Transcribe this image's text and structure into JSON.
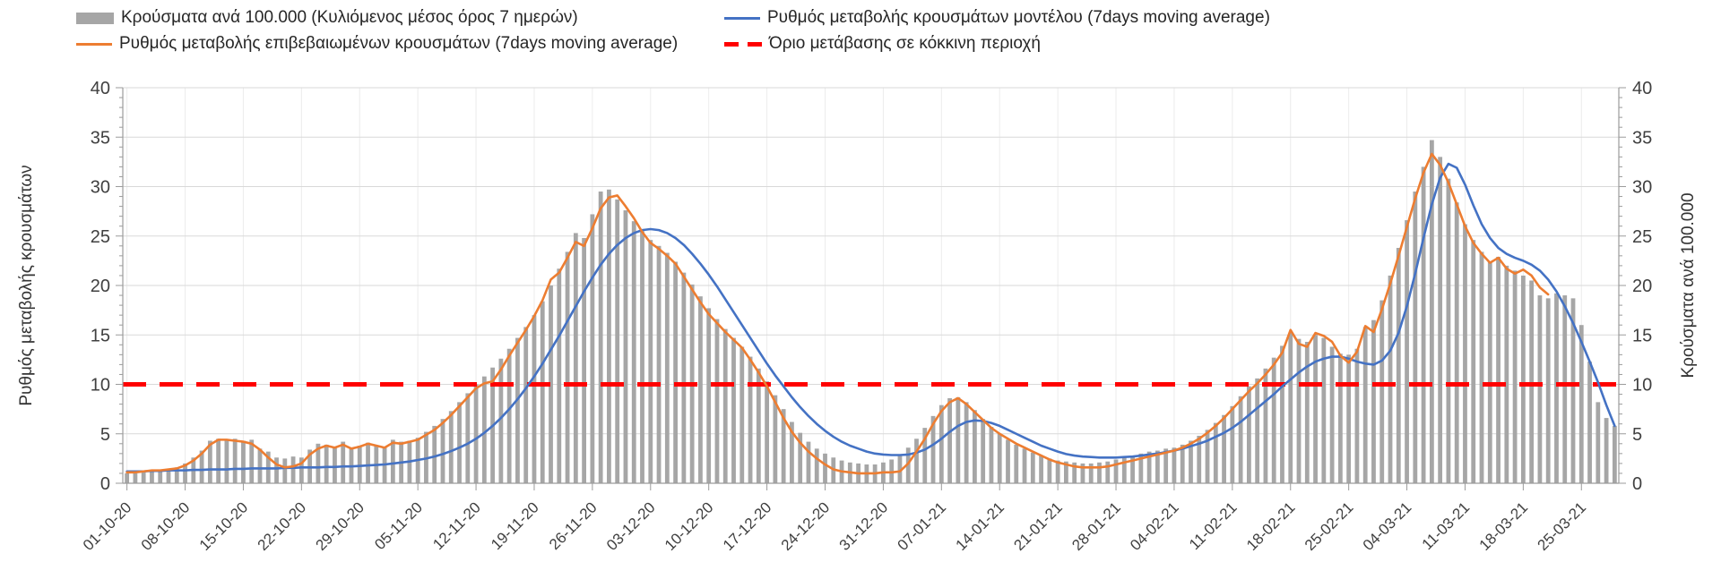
{
  "legend": {
    "items": [
      {
        "key": "bars",
        "label": "Κρούσματα ανά 100.000 (Κυλιόμενος μέσος όρος 7 ημερών)",
        "swatch": "bar"
      },
      {
        "key": "model",
        "label": "Ρυθμός μεταβολής κρουσμάτων μοντέλου (7days moving average)",
        "swatch": "line"
      },
      {
        "key": "confirmed",
        "label": "Ρυθμός μεταβολής επιβεβαιωμένων κρουσμάτων (7days moving average)",
        "swatch": "line"
      },
      {
        "key": "threshold",
        "label": "Όριο μετάβασης σε κόκκινη περιοχή",
        "swatch": "dash"
      }
    ]
  },
  "chart_data": {
    "type": "combo-bar-line",
    "title": "",
    "ylabel_left": "Ρυθμός μεταβολής κρουσμάτων",
    "ylabel_right": "Κρούσματα ανά 100.000",
    "ylim": [
      0,
      40
    ],
    "y_tick_step": 5,
    "y_minor_tick_step": 1,
    "grid": true,
    "legend_position": "top",
    "n_points": 180,
    "tick_interval_days": 7,
    "x_tick_labels": [
      "01-10-20",
      "08-10-20",
      "15-10-20",
      "22-10-20",
      "29-10-20",
      "05-11-20",
      "12-11-20",
      "19-11-20",
      "26-11-20",
      "03-12-20",
      "10-12-20",
      "17-12-20",
      "24-12-20",
      "31-12-20",
      "07-01-21",
      "14-01-21",
      "21-01-21",
      "28-01-21",
      "04-02-21",
      "11-02-21",
      "18-02-21",
      "25-02-21",
      "04-03-21",
      "11-03-21",
      "18-03-21",
      "25-03-21"
    ],
    "threshold": {
      "name": "Όριο μετάβασης σε κόκκινη περιοχή",
      "value": 10,
      "color": "#FF0000",
      "style": "dashed"
    },
    "colors": {
      "bars": "#A6A6A6",
      "confirmed": "#ED7D31",
      "model": "#4472C4",
      "threshold": "#FF0000",
      "gridline": "#D9D9D9",
      "vgridline": "#ECECEC",
      "axis": "#9B9B9B",
      "tick_text": "#404040"
    },
    "series": [
      {
        "name": "Κρούσματα ανά 100.000 (Κυλιόμενος μέσος όρος 7 ημερών)",
        "type": "bar",
        "color": "#A6A6A6",
        "values": [
          1.0,
          1.0,
          1.1,
          1.2,
          1.3,
          1.3,
          1.6,
          2.0,
          2.6,
          3.3,
          4.3,
          4.5,
          4.4,
          4.5,
          4.3,
          4.4,
          3.5,
          3.2,
          2.6,
          2.5,
          2.7,
          2.6,
          3.4,
          4.0,
          3.9,
          3.7,
          4.2,
          3.6,
          3.8,
          4.1,
          3.8,
          3.7,
          4.4,
          4.2,
          4.3,
          4.6,
          5.2,
          5.8,
          6.5,
          7.3,
          8.2,
          9.1,
          10.0,
          10.8,
          11.7,
          12.6,
          13.6,
          14.7,
          15.8,
          17.0,
          18.4,
          20.0,
          21.7,
          23.4,
          25.3,
          24.8,
          27.2,
          29.5,
          29.7,
          28.7,
          27.6,
          26.5,
          25.5,
          24.6,
          24.0,
          23.3,
          22.4,
          21.3,
          20.1,
          18.9,
          17.7,
          16.6,
          15.6,
          14.7,
          13.8,
          12.8,
          11.6,
          10.3,
          8.9,
          7.5,
          6.2,
          5.1,
          4.2,
          3.5,
          3.0,
          2.6,
          2.3,
          2.1,
          2.0,
          1.9,
          1.9,
          2.1,
          2.4,
          2.9,
          3.6,
          4.5,
          5.6,
          6.8,
          7.9,
          8.6,
          8.7,
          8.2,
          7.4,
          6.5,
          5.7,
          5.0,
          4.4,
          3.9,
          3.5,
          3.1,
          2.8,
          2.5,
          2.3,
          2.2,
          2.1,
          2.0,
          2.0,
          2.1,
          2.2,
          2.4,
          2.6,
          2.8,
          3.0,
          3.2,
          3.3,
          3.5,
          3.6,
          3.9,
          4.3,
          4.8,
          5.4,
          6.1,
          6.9,
          7.8,
          8.8,
          9.8,
          10.6,
          11.6,
          12.7,
          13.9,
          15.2,
          14.6,
          14.3,
          15.0,
          14.7,
          13.8,
          13.1,
          13.0,
          13.6,
          15.8,
          16.5,
          18.5,
          21.0,
          23.8,
          26.6,
          29.5,
          32.0,
          34.7,
          33.0,
          30.8,
          28.4,
          26.2,
          24.6,
          23.4,
          22.4,
          22.9,
          22.0,
          21.5,
          21.0,
          20.5,
          19.0,
          18.7,
          19.2,
          19.0,
          18.7,
          16.0,
          12.3,
          8.2,
          6.6,
          5.8
        ]
      },
      {
        "name": "Ρυθμός μεταβολής επιβεβαιωμένων κρουσμάτων (7days moving average)",
        "type": "line",
        "color": "#ED7D31",
        "values": [
          1.1,
          1.1,
          1.2,
          1.3,
          1.3,
          1.4,
          1.5,
          1.8,
          2.3,
          3.0,
          3.9,
          4.4,
          4.4,
          4.3,
          4.2,
          4.0,
          3.4,
          2.6,
          1.9,
          1.6,
          1.7,
          2.0,
          2.9,
          3.5,
          3.8,
          3.6,
          3.9,
          3.5,
          3.7,
          4.0,
          3.8,
          3.6,
          4.1,
          4.0,
          4.2,
          4.4,
          4.9,
          5.4,
          6.1,
          6.9,
          7.8,
          8.7,
          9.6,
          10.1,
          10.3,
          11.5,
          12.9,
          14.2,
          15.5,
          16.9,
          18.5,
          20.6,
          21.3,
          22.8,
          24.4,
          24.0,
          25.8,
          27.8,
          28.9,
          29.1,
          28.0,
          26.8,
          25.4,
          24.3,
          23.7,
          23.0,
          22.2,
          20.9,
          19.6,
          18.3,
          17.1,
          16.2,
          15.3,
          14.5,
          13.7,
          12.5,
          11.2,
          9.8,
          8.2,
          6.6,
          5.2,
          4.1,
          3.2,
          2.5,
          1.9,
          1.4,
          1.2,
          1.1,
          1.0,
          1.0,
          1.0,
          1.1,
          1.1,
          1.2,
          2.0,
          3.2,
          4.5,
          6.0,
          7.3,
          8.2,
          8.6,
          8.0,
          7.2,
          6.4,
          5.6,
          5.0,
          4.5,
          4.0,
          3.6,
          3.2,
          2.8,
          2.4,
          2.1,
          1.9,
          1.7,
          1.6,
          1.6,
          1.6,
          1.7,
          1.9,
          2.1,
          2.3,
          2.5,
          2.7,
          2.9,
          3.1,
          3.3,
          3.6,
          4.0,
          4.5,
          5.1,
          5.8,
          6.6,
          7.5,
          8.4,
          9.3,
          10.1,
          11.0,
          12.0,
          13.2,
          15.5,
          14.1,
          13.8,
          15.2,
          14.9,
          14.3,
          12.9,
          12.2,
          13.3,
          15.9,
          15.3,
          17.6,
          20.2,
          23.0,
          25.9,
          28.8,
          31.4,
          33.3,
          32.2,
          30.4,
          28.2,
          26.0,
          24.3,
          23.2,
          22.3,
          22.8,
          21.7,
          21.2,
          21.6,
          21.0,
          19.8,
          19.1,
          null,
          null,
          null,
          null,
          null,
          null,
          null,
          null
        ]
      },
      {
        "name": "Ρυθμός μεταβολής κρουσμάτων μοντέλου (7days moving average)",
        "type": "line",
        "color": "#4472C4",
        "values": [
          1.2,
          1.2,
          1.2,
          1.25,
          1.25,
          1.3,
          1.3,
          1.3,
          1.35,
          1.35,
          1.4,
          1.4,
          1.4,
          1.45,
          1.45,
          1.5,
          1.5,
          1.5,
          1.5,
          1.55,
          1.55,
          1.6,
          1.6,
          1.6,
          1.65,
          1.65,
          1.7,
          1.7,
          1.75,
          1.8,
          1.85,
          1.9,
          2.0,
          2.1,
          2.2,
          2.35,
          2.5,
          2.7,
          2.95,
          3.25,
          3.6,
          4.0,
          4.5,
          5.1,
          5.8,
          6.6,
          7.5,
          8.5,
          9.6,
          10.8,
          12.1,
          13.5,
          14.9,
          16.4,
          17.9,
          19.4,
          20.8,
          22.1,
          23.2,
          24.1,
          24.8,
          25.3,
          25.6,
          25.7,
          25.6,
          25.3,
          24.8,
          24.1,
          23.2,
          22.2,
          21.1,
          19.9,
          18.6,
          17.3,
          16.0,
          14.7,
          13.4,
          12.1,
          10.9,
          9.8,
          8.7,
          7.7,
          6.8,
          6.0,
          5.3,
          4.7,
          4.2,
          3.8,
          3.5,
          3.2,
          3.0,
          2.9,
          2.85,
          2.85,
          2.9,
          3.1,
          3.4,
          3.9,
          4.5,
          5.2,
          5.8,
          6.2,
          6.35,
          6.3,
          6.1,
          5.8,
          5.4,
          5.0,
          4.6,
          4.2,
          3.8,
          3.5,
          3.2,
          2.95,
          2.8,
          2.7,
          2.65,
          2.6,
          2.6,
          2.6,
          2.65,
          2.7,
          2.8,
          2.9,
          3.0,
          3.15,
          3.3,
          3.5,
          3.75,
          4.0,
          4.3,
          4.7,
          5.1,
          5.6,
          6.2,
          6.9,
          7.6,
          8.3,
          9.0,
          9.8,
          10.5,
          11.2,
          11.8,
          12.3,
          12.6,
          12.8,
          12.8,
          12.6,
          12.3,
          12.1,
          12.0,
          12.4,
          13.4,
          15.2,
          17.9,
          21.2,
          24.8,
          28.2,
          30.9,
          32.3,
          31.9,
          30.2,
          28.1,
          26.2,
          24.8,
          23.8,
          23.2,
          22.8,
          22.5,
          22.1,
          21.5,
          20.6,
          19.4,
          17.9,
          16.2,
          14.3,
          12.3,
          10.2,
          7.9,
          5.8
        ]
      }
    ]
  }
}
